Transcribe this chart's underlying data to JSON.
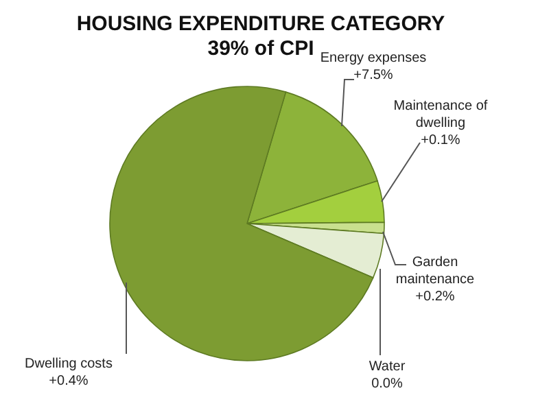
{
  "chart_data": {
    "type": "pie",
    "title": "HOUSING EXPENDITURE CATEGORY",
    "subtitle": "39% of CPI",
    "categories": [
      "Energy expenses\n+7.5%",
      "Maintenance of dwelling\n+0.1%",
      "Garden maintenance\n+0.2%",
      "Water\n0.0%",
      "Dwelling costs\n+0.4%"
    ],
    "values": [
      15.4,
      4.9,
      1.3,
      5.3,
      73.1
    ],
    "colors": [
      "#8db33a",
      "#a3cf3e",
      "#c9e08e",
      "#e4edd3",
      "#7d9c32"
    ]
  }
}
